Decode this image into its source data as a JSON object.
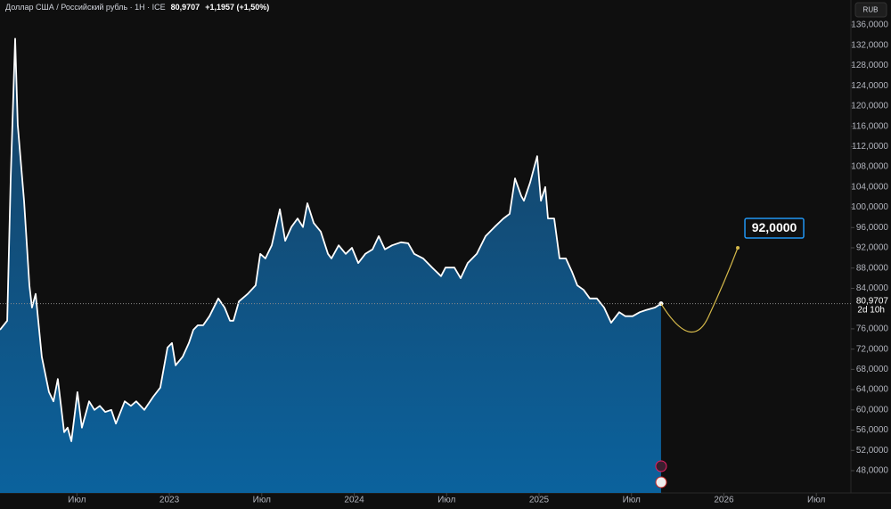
{
  "chart_data": {
    "type": "area",
    "title": "Доллар США / Российский рубль · 1Н · ICE",
    "price": "80,9707",
    "change": "+1,1957 (+1,50%)",
    "currency": "RUB",
    "last_label": "80,9707",
    "countdown": "2d 10h",
    "color": "#ffffff",
    "fill_top": "#173f60",
    "fill_bottom": "#0b629d",
    "x": [
      2022.084,
      2022.123,
      2022.142,
      2022.166,
      2022.18,
      2022.214,
      2022.243,
      2022.257,
      2022.277,
      2022.31,
      2022.349,
      2022.373,
      2022.397,
      2022.431,
      2022.45,
      2022.47,
      2022.503,
      2022.527,
      2022.566,
      2022.595,
      2022.624,
      2022.653,
      2022.686,
      2022.711,
      2022.759,
      2022.792,
      2022.821,
      2022.865,
      2022.913,
      2022.951,
      2022.99,
      2023.014,
      2023.034,
      2023.072,
      2023.106,
      2023.13,
      2023.154,
      2023.183,
      2023.217,
      2023.265,
      2023.299,
      2023.328,
      2023.347,
      2023.376,
      2023.424,
      2023.467,
      2023.492,
      2023.52,
      2023.554,
      2023.598,
      2023.627,
      2023.66,
      2023.694,
      2023.723,
      2023.747,
      2023.781,
      2023.819,
      2023.858,
      2023.877,
      2023.916,
      2023.954,
      2023.988,
      2024.022,
      2024.06,
      2024.099,
      2024.133,
      2024.166,
      2024.205,
      2024.253,
      2024.292,
      2024.325,
      2024.373,
      2024.422,
      2024.47,
      2024.494,
      2024.542,
      2024.576,
      2024.614,
      2024.663,
      2024.711,
      2024.759,
      2024.807,
      2024.841,
      2024.87,
      2024.904,
      2024.918,
      2024.952,
      2024.99,
      2025.01,
      2025.034,
      2025.048,
      2025.082,
      2025.111,
      2025.145,
      2025.178,
      2025.207,
      2025.241,
      2025.275,
      2025.313,
      2025.352,
      2025.39,
      2025.434,
      2025.467,
      2025.506,
      2025.545,
      2025.578,
      2025.627,
      2025.66
    ],
    "values": [
      75.8,
      77.6,
      105.7,
      133.3,
      116.3,
      101.3,
      84.6,
      80.2,
      82.9,
      70.5,
      63.5,
      61.7,
      66.1,
      55.6,
      56.5,
      53.8,
      63.5,
      56.5,
      61.7,
      60.0,
      60.8,
      59.6,
      60.0,
      57.3,
      61.7,
      60.8,
      61.7,
      60.0,
      62.6,
      64.4,
      72.3,
      73.2,
      68.8,
      70.5,
      73.2,
      75.8,
      76.7,
      76.7,
      78.5,
      82.0,
      80.2,
      77.6,
      77.6,
      81.4,
      82.9,
      84.6,
      90.8,
      89.9,
      92.5,
      99.6,
      93.4,
      96.1,
      97.8,
      96.1,
      100.8,
      96.9,
      95.2,
      90.8,
      89.9,
      92.5,
      90.8,
      92.0,
      89.0,
      90.8,
      91.7,
      94.3,
      91.7,
      92.5,
      93.1,
      92.9,
      90.8,
      89.9,
      88.1,
      86.4,
      88.1,
      88.1,
      86.0,
      89.0,
      90.8,
      94.3,
      96.1,
      97.8,
      98.7,
      105.7,
      102.2,
      101.3,
      104.9,
      110.1,
      101.3,
      104.0,
      97.8,
      97.8,
      89.9,
      89.9,
      87.3,
      84.6,
      83.7,
      82.0,
      82.0,
      80.2,
      77.2,
      79.3,
      78.5,
      78.5,
      79.3,
      79.7,
      80.2,
      80.9707
    ],
    "forecast": {
      "label": "92,0000",
      "value": 92,
      "x": 2026.075
    },
    "xlim": [
      2022.084,
      2026.687
    ],
    "ylim": [
      43.6,
      140.93
    ],
    "xticks": [
      {
        "value": 2022.5,
        "label": "Июл"
      },
      2023,
      {
        "value": 2023.5,
        "label": "Июл"
      },
      2024,
      {
        "value": 2024.5,
        "label": "Июл"
      },
      2025,
      {
        "value": 2025.5,
        "label": "Июл"
      },
      2026,
      {
        "value": 2026.5,
        "label": "Июл"
      }
    ],
    "yticks": [
      {
        "value": 48,
        "label": "48,0000"
      },
      {
        "value": 52,
        "label": "52,0000"
      },
      {
        "value": 56,
        "label": "56,0000"
      },
      {
        "value": 60,
        "label": "60,0000"
      },
      {
        "value": 64,
        "label": "64,0000"
      },
      {
        "value": 68,
        "label": "68,0000"
      },
      {
        "value": 72,
        "label": "72,0000"
      },
      {
        "value": 76,
        "label": "76,0000"
      },
      {
        "value": 84,
        "label": "84,0000"
      },
      {
        "value": 88,
        "label": "88,0000"
      },
      {
        "value": 92,
        "label": "92,0000"
      },
      {
        "value": 96,
        "label": "96,0000"
      },
      {
        "value": 100,
        "label": "100,0000"
      },
      {
        "value": 104,
        "label": "104,0000"
      },
      {
        "value": 108,
        "label": "108,0000"
      },
      {
        "value": 112,
        "label": "112,0000"
      },
      {
        "value": 116,
        "label": "116,0000"
      },
      {
        "value": 120,
        "label": "120,0000"
      },
      {
        "value": 124,
        "label": "124,0000"
      },
      {
        "value": 128,
        "label": "128,0000"
      },
      {
        "value": 132,
        "label": "132,0000"
      },
      {
        "value": 136,
        "label": "136,0000"
      }
    ]
  }
}
